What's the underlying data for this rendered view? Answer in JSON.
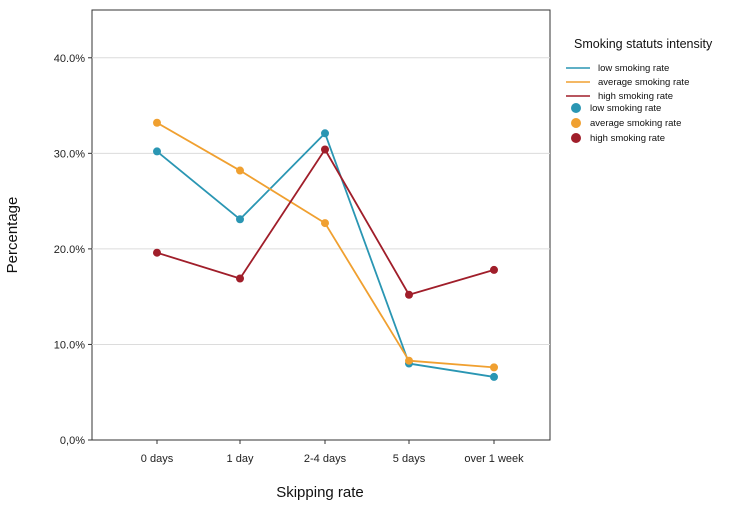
{
  "chart_data": {
    "type": "line",
    "title": "",
    "xlabel": "Skipping rate",
    "ylabel": "Percentage",
    "categories": [
      "0 days",
      "1 day",
      "2-4 days",
      "5 days",
      "over 1 week"
    ],
    "y_ticks": [
      0,
      10,
      20,
      30,
      40
    ],
    "y_tick_labels": [
      "0,0%",
      "10.0%",
      "20.0%",
      "30.0%",
      "40.0%"
    ],
    "ylim": [
      0,
      45
    ],
    "grid": true,
    "legend_position": "top-right",
    "legend_title": "Smoking statuts intensity",
    "series": [
      {
        "name": "low smoking rate",
        "color": "#2a96b3",
        "values": [
          30.2,
          23.1,
          32.1,
          8.0,
          6.6
        ]
      },
      {
        "name": "average smoking rate",
        "color": "#f0a030",
        "values": [
          33.2,
          28.2,
          22.7,
          8.3,
          7.6
        ]
      },
      {
        "name": "high smoking rate",
        "color": "#a01e2a",
        "values": [
          19.6,
          16.9,
          30.4,
          15.2,
          17.8
        ]
      }
    ],
    "legend_line_labels": [
      "low smoking rate",
      "average smoking rate",
      "high smoking rate"
    ],
    "legend_marker_labels": [
      "low smoking rate",
      "average smoking rate",
      "high smoking rate"
    ]
  }
}
